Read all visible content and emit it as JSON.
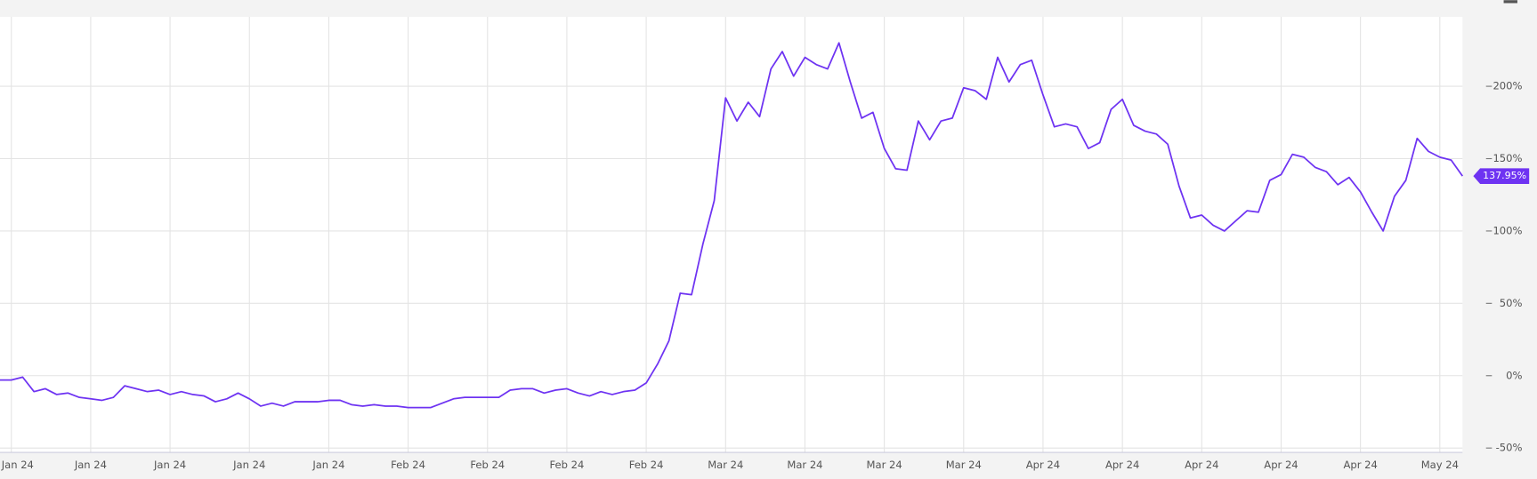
{
  "chart_data": {
    "type": "line",
    "categories": [
      null,
      "Jan 24",
      null,
      null,
      null,
      null,
      null,
      null,
      "Jan 24",
      null,
      null,
      null,
      null,
      null,
      null,
      "Jan 24",
      null,
      null,
      null,
      null,
      null,
      null,
      "Jan 24",
      null,
      null,
      null,
      null,
      null,
      null,
      "Jan 24",
      null,
      null,
      null,
      null,
      null,
      null,
      "Feb 24",
      null,
      null,
      null,
      null,
      null,
      null,
      "Feb 24",
      null,
      null,
      null,
      null,
      null,
      null,
      "Feb 24",
      null,
      null,
      null,
      null,
      null,
      null,
      "Feb 24",
      null,
      null,
      null,
      null,
      null,
      null,
      "Mar 24",
      null,
      null,
      null,
      null,
      null,
      null,
      "Mar 24",
      null,
      null,
      null,
      null,
      null,
      null,
      "Mar 24",
      null,
      null,
      null,
      null,
      null,
      null,
      "Mar 24",
      null,
      null,
      null,
      null,
      null,
      null,
      "Apr 24",
      null,
      null,
      null,
      null,
      null,
      null,
      "Apr 24",
      null,
      null,
      null,
      null,
      null,
      null,
      "Apr 24",
      null,
      null,
      null,
      null,
      null,
      null,
      "Apr 24",
      null,
      null,
      null,
      null,
      null,
      null,
      "Apr 24",
      null,
      null,
      null,
      null,
      null,
      null,
      "May 24",
      null,
      null
    ],
    "values": [
      -3,
      -3,
      -1,
      -11,
      -9,
      -13,
      -12,
      -15,
      -16,
      -17,
      -15,
      -7,
      -9,
      -11,
      -10,
      -13,
      -11,
      -13,
      -14,
      -18,
      -16,
      -12,
      -16,
      -21,
      -19,
      -21,
      -18,
      -18,
      -18,
      -17,
      -17,
      -20,
      -21,
      -20,
      -21,
      -21,
      -22,
      -22,
      -22,
      -19,
      -16,
      -15,
      -15,
      -15,
      -15,
      -10,
      -9,
      -9,
      -12,
      -10,
      -9,
      -12,
      -14,
      -11,
      -13,
      -11,
      -10,
      -5,
      8,
      24,
      57,
      56,
      91,
      121,
      192,
      176,
      189,
      179,
      212,
      224,
      207,
      220,
      215,
      212,
      230,
      203,
      178,
      182,
      157,
      143,
      142,
      176,
      163,
      176,
      178,
      199,
      197,
      191,
      220,
      203,
      215,
      218,
      194,
      172,
      174,
      172,
      157,
      161,
      184,
      191,
      173,
      169,
      167,
      160,
      131,
      109,
      111,
      104,
      100,
      107,
      114,
      113,
      135,
      139,
      153,
      151,
      144,
      141,
      132,
      137,
      127,
      113,
      100,
      124,
      135,
      164,
      155,
      151,
      149,
      137.95
    ],
    "value_labels": [
      null,
      null,
      null,
      null,
      null,
      null,
      null,
      null,
      null,
      null,
      null,
      null,
      null,
      null,
      null,
      null,
      null,
      null,
      null,
      null,
      null,
      null,
      null,
      null,
      null,
      null,
      null,
      null,
      null,
      null,
      null,
      null,
      null,
      null,
      null,
      null,
      null,
      null,
      null,
      null,
      null,
      null,
      null,
      null,
      null,
      null,
      null,
      null,
      null,
      null,
      null,
      null,
      null,
      null,
      null,
      null,
      null,
      null,
      null,
      null,
      null,
      null,
      null,
      null,
      null,
      null,
      null,
      null,
      null,
      null,
      null,
      null,
      null,
      null,
      null,
      null,
      null,
      null,
      null,
      null,
      null,
      null,
      null,
      null,
      null,
      null,
      null,
      null,
      null,
      null,
      null,
      null,
      null,
      null,
      null,
      null,
      null,
      null,
      null,
      null,
      null,
      null,
      null,
      null,
      null,
      null,
      null,
      null,
      null,
      null,
      null,
      null,
      null,
      null,
      null,
      null,
      null,
      null,
      null,
      null,
      null,
      null,
      null,
      null,
      null,
      null,
      null,
      null,
      null,
      "137.95%"
    ],
    "color": "#6e33f2",
    "ylim": [
      -53,
      248
    ],
    "yticks": [
      {
        "value": -50,
        "label": "-50%"
      },
      {
        "value": 0,
        "label": "0%"
      },
      {
        "value": 50,
        "label": "50%"
      },
      {
        "value": 100,
        "label": "100%"
      },
      {
        "value": 150,
        "label": "150%"
      },
      {
        "value": 200,
        "label": "200%"
      }
    ],
    "grid": true
  }
}
